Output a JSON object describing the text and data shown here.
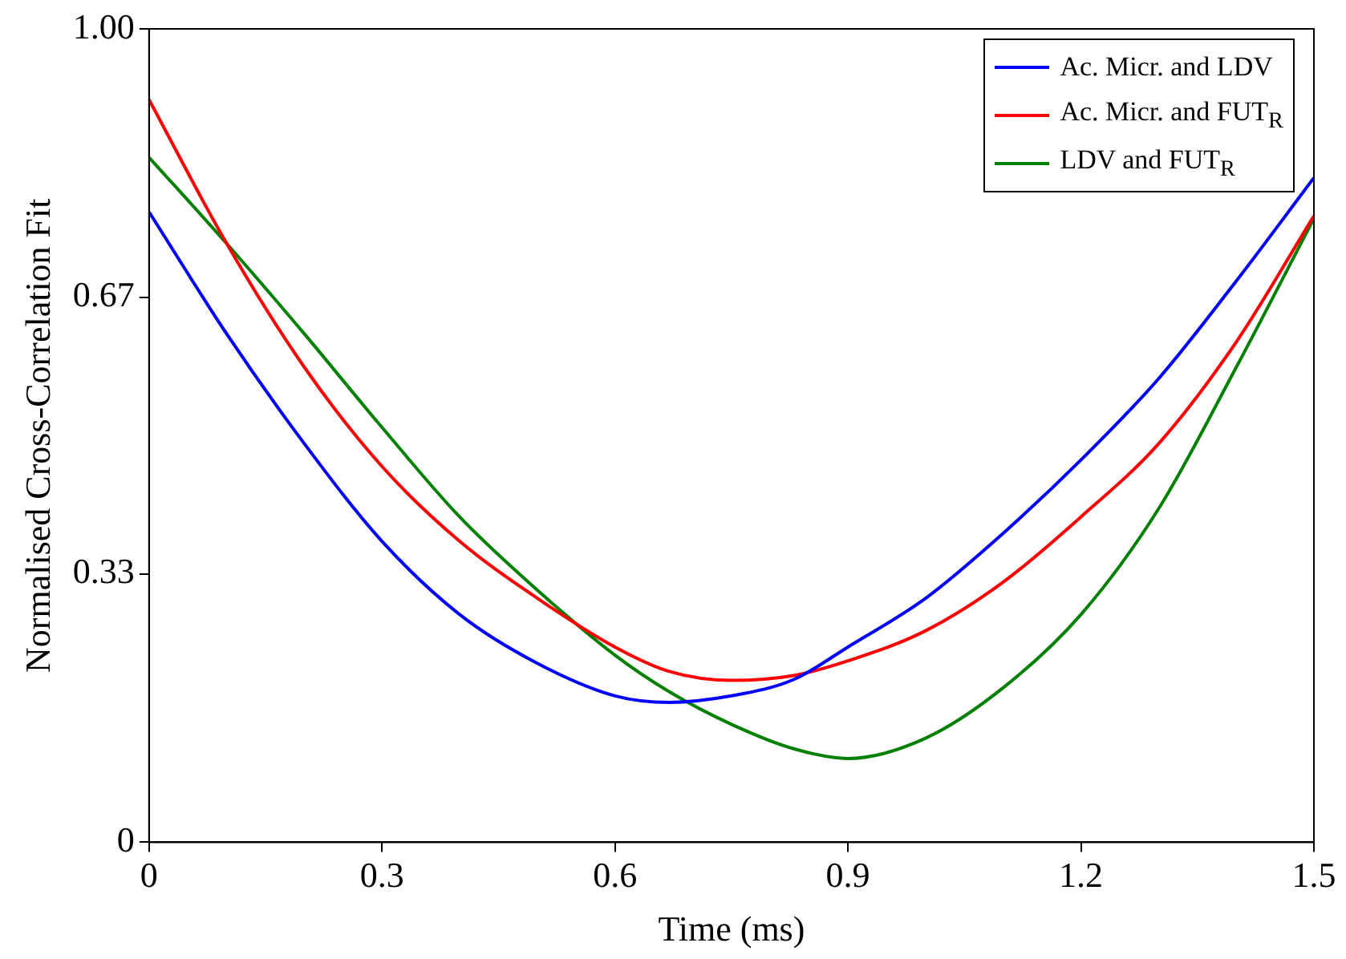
{
  "chart_data": {
    "type": "line",
    "xlabel": "Time (ms)",
    "ylabel": "Normalised Cross-Correlation Fit",
    "x": [
      0,
      0.1,
      0.2,
      0.3,
      0.4,
      0.5,
      0.6,
      0.67,
      0.75,
      0.83,
      0.9,
      1.0,
      1.1,
      1.2,
      1.3,
      1.4,
      1.5
    ],
    "series": [
      {
        "name": "Ac. Micr. and LDV",
        "color": "#0000ff",
        "values": [
          0.775,
          0.625,
          0.49,
          0.37,
          0.28,
          0.22,
          0.18,
          0.172,
          0.18,
          0.2,
          0.24,
          0.3,
          0.38,
          0.47,
          0.57,
          0.69,
          0.817
        ]
      },
      {
        "name": "Ac. Micr. and FUT$_{R}$",
        "color": "#ff0000",
        "values": [
          0.913,
          0.736,
          0.584,
          0.462,
          0.37,
          0.3,
          0.24,
          0.21,
          0.199,
          0.205,
          0.223,
          0.26,
          0.32,
          0.4,
          0.49,
          0.615,
          0.77
        ]
      },
      {
        "name": "LDV and FUT$_{R}$",
        "color": "#008000",
        "values": [
          0.842,
          0.736,
          0.625,
          0.51,
          0.4,
          0.31,
          0.23,
          0.185,
          0.145,
          0.115,
          0.103,
          0.128,
          0.19,
          0.28,
          0.41,
          0.584,
          0.767
        ]
      }
    ],
    "xlim": [
      0,
      1.5
    ],
    "xticks": [
      0,
      0.3,
      0.6,
      0.9,
      1.2,
      1.5
    ],
    "ylim": [
      0,
      1
    ],
    "yticks": [
      0,
      0.33,
      0.67,
      {
        "value": 1,
        "label": "1.00"
      }
    ],
    "grid": false,
    "legend": "top right",
    "marker": "none",
    "line_style": "solid"
  }
}
